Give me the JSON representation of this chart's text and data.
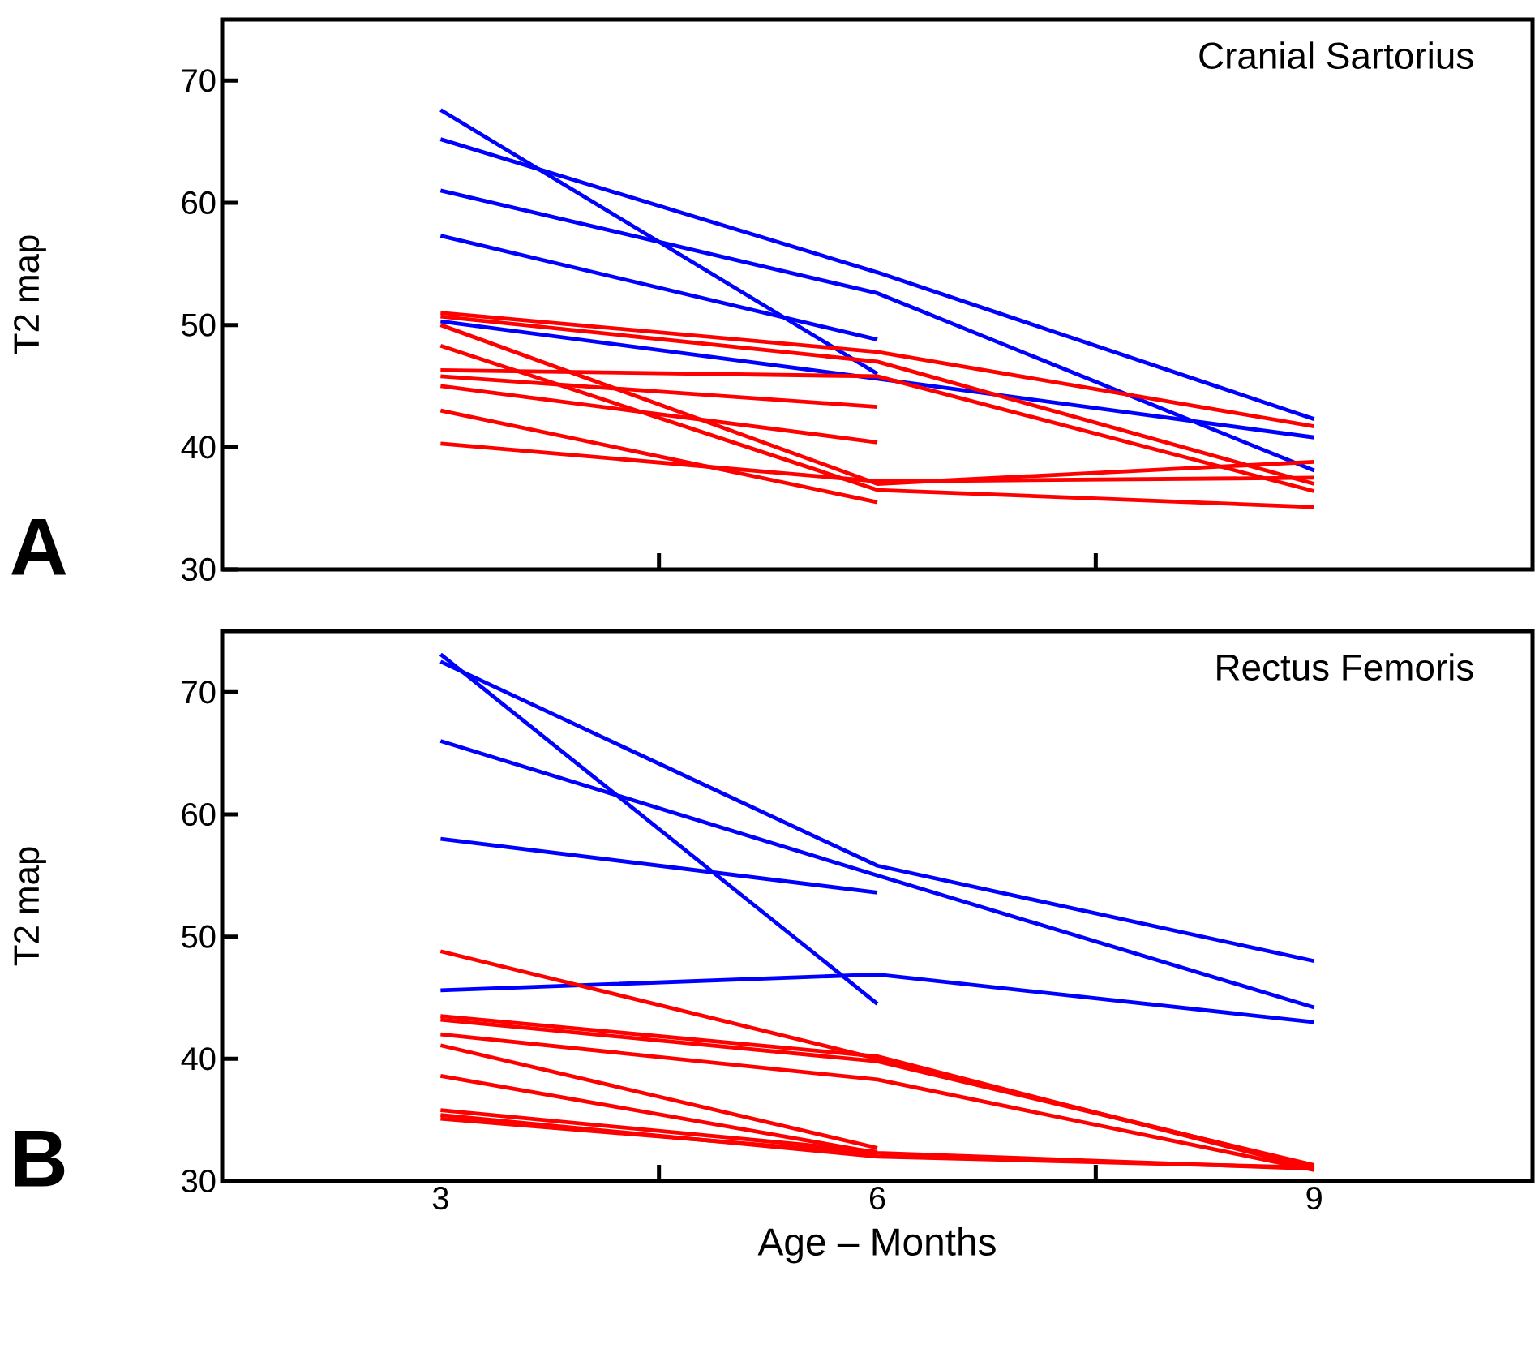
{
  "chart_data": [
    {
      "type": "line",
      "title": "Cranial Sartorius",
      "ylabel": "T2 map",
      "annotations": [
        "A"
      ],
      "x": [
        3,
        6,
        9
      ],
      "xlim": [
        1.5,
        10.5
      ],
      "xticks": [
        {
          "value": 4.5,
          "label": null
        },
        {
          "value": 7.5,
          "label": null
        }
      ],
      "ylim": [
        30,
        75
      ],
      "yticks": [
        30,
        40,
        50,
        60,
        70
      ],
      "tick_labels": "y",
      "series": [
        {
          "color": "#0000ff",
          "values": [
            67.6,
            46.0,
            null
          ]
        },
        {
          "color": "#0000ff",
          "values": [
            65.2,
            54.3,
            42.3
          ]
        },
        {
          "color": "#0000ff",
          "values": [
            61.0,
            52.6,
            38.1
          ]
        },
        {
          "color": "#0000ff",
          "values": [
            57.3,
            48.8,
            null
          ]
        },
        {
          "color": "#0000ff",
          "values": [
            50.3,
            45.6,
            40.8
          ]
        },
        {
          "color": "#ff0000",
          "values": [
            51.0,
            47.8,
            41.7
          ]
        },
        {
          "color": "#ff0000",
          "values": [
            50.7,
            47.0,
            37.0
          ]
        },
        {
          "color": "#ff0000",
          "values": [
            50.0,
            37.0,
            38.8
          ]
        },
        {
          "color": "#ff0000",
          "values": [
            48.3,
            36.5,
            35.1
          ]
        },
        {
          "color": "#ff0000",
          "values": [
            46.3,
            45.8,
            36.4
          ]
        },
        {
          "color": "#ff0000",
          "values": [
            45.8,
            43.3,
            null
          ]
        },
        {
          "color": "#ff0000",
          "values": [
            45.0,
            40.4,
            null
          ]
        },
        {
          "color": "#ff0000",
          "values": [
            43.0,
            35.5,
            null
          ]
        },
        {
          "color": "#ff0000",
          "values": [
            40.3,
            37.2,
            37.5
          ]
        }
      ]
    },
    {
      "type": "line",
      "title": "Rectus Femoris",
      "ylabel": "T2 map",
      "xlabel": "Age – Months",
      "annotations": [
        "B"
      ],
      "x": [
        3,
        6,
        9
      ],
      "xlim": [
        1.5,
        10.5
      ],
      "xticks": [
        {
          "value": 3,
          "label": "3"
        },
        {
          "value": 4.5,
          "label": null
        },
        {
          "value": 6,
          "label": "6"
        },
        {
          "value": 7.5,
          "label": null
        },
        {
          "value": 9,
          "label": "9"
        }
      ],
      "ylim": [
        30,
        75
      ],
      "yticks": [
        30,
        40,
        50,
        60,
        70
      ],
      "series": [
        {
          "color": "#0000ff",
          "values": [
            73.1,
            44.5,
            null
          ]
        },
        {
          "color": "#0000ff",
          "values": [
            72.5,
            55.8,
            48.0
          ]
        },
        {
          "color": "#0000ff",
          "values": [
            66.0,
            55.0,
            44.2
          ]
        },
        {
          "color": "#0000ff",
          "values": [
            58.0,
            53.6,
            null
          ]
        },
        {
          "color": "#0000ff",
          "values": [
            45.6,
            46.9,
            43.0
          ]
        },
        {
          "color": "#ff0000",
          "values": [
            48.8,
            40.0,
            31.2
          ]
        },
        {
          "color": "#ff0000",
          "values": [
            43.5,
            40.2,
            31.0
          ]
        },
        {
          "color": "#ff0000",
          "values": [
            43.2,
            39.8,
            31.3
          ]
        },
        {
          "color": "#ff0000",
          "values": [
            42.0,
            38.3,
            30.9
          ]
        },
        {
          "color": "#ff0000",
          "values": [
            41.1,
            32.7,
            null
          ]
        },
        {
          "color": "#ff0000",
          "values": [
            38.6,
            32.3,
            31.0
          ]
        },
        {
          "color": "#ff0000",
          "values": [
            35.8,
            32.4,
            null
          ]
        },
        {
          "color": "#ff0000",
          "values": [
            35.4,
            32.0,
            31.1
          ]
        },
        {
          "color": "#ff0000",
          "values": [
            35.1,
            32.2,
            null
          ]
        }
      ]
    }
  ]
}
